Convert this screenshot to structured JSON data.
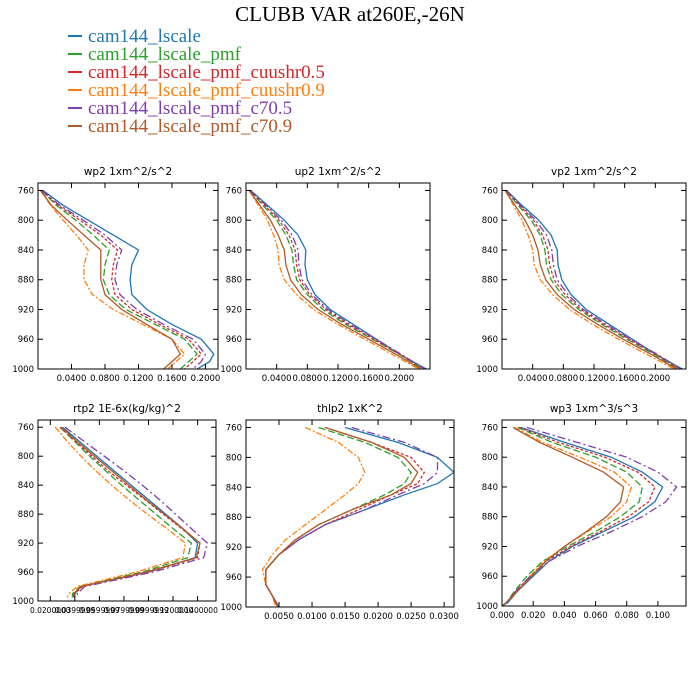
{
  "title": "CLUBB VAR at260E,-26N",
  "legend": [
    {
      "label": "cam144_lscale",
      "color": "#1f77b4"
    },
    {
      "label": "cam144_lscale_pmf",
      "color": "#2ca02c"
    },
    {
      "label": "cam144_lscale_pmf_cuushr0.5",
      "color": "#d62728"
    },
    {
      "label": "cam144_lscale_pmf_cuushr0.9",
      "color": "#ff7f0e"
    },
    {
      "label": "cam144_lscale_pmf_c70.5",
      "color": "#7e3fb0"
    },
    {
      "label": "cam144_lscale_pmf_c70.9",
      "color": "#b15928"
    }
  ],
  "chart_data": [
    {
      "type": "line",
      "title": "wp2   1xm^2/s^2",
      "ylim": [
        1000,
        750
      ],
      "yticks": [
        760,
        800,
        840,
        880,
        920,
        960,
        1000
      ],
      "xlim": [
        0.0,
        0.215
      ],
      "xticks": [
        0.04,
        0.08,
        0.12,
        0.16,
        0.2
      ],
      "xticklabels": [
        "0.0400",
        "0.0800",
        "0.1200",
        "0.1600",
        "0.2000"
      ],
      "y": [
        760,
        780,
        800,
        820,
        840,
        860,
        880,
        900,
        920,
        940,
        960,
        980,
        990,
        1000
      ],
      "series": [
        {
          "name": "cam144_lscale",
          "values": [
            0.006,
            0.03,
            0.06,
            0.09,
            0.12,
            0.112,
            0.11,
            0.112,
            0.13,
            0.16,
            0.195,
            0.21,
            0.205,
            0.19
          ]
        },
        {
          "name": "cam144_lscale_pmf",
          "values": [
            0.004,
            0.022,
            0.045,
            0.066,
            0.085,
            0.08,
            0.078,
            0.085,
            0.105,
            0.14,
            0.175,
            0.19,
            0.18,
            0.17
          ]
        },
        {
          "name": "cam144_lscale_pmf_cuushr0.5",
          "values": [
            0.004,
            0.024,
            0.05,
            0.075,
            0.095,
            0.09,
            0.088,
            0.092,
            0.112,
            0.145,
            0.18,
            0.195,
            0.185,
            0.175
          ]
        },
        {
          "name": "cam144_lscale_pmf_cuushr0.9",
          "values": [
            0.003,
            0.015,
            0.03,
            0.046,
            0.06,
            0.055,
            0.055,
            0.065,
            0.09,
            0.125,
            0.16,
            0.175,
            0.165,
            0.155
          ]
        },
        {
          "name": "cam144_lscale_pmf_c70.5",
          "values": [
            0.005,
            0.026,
            0.054,
            0.08,
            0.1,
            0.094,
            0.092,
            0.098,
            0.118,
            0.15,
            0.185,
            0.2,
            0.195,
            0.185
          ]
        },
        {
          "name": "cam144_lscale_pmf_c70.9",
          "values": [
            0.003,
            0.016,
            0.035,
            0.055,
            0.075,
            0.075,
            0.075,
            0.08,
            0.1,
            0.13,
            0.16,
            0.17,
            0.16,
            0.15
          ]
        }
      ]
    },
    {
      "type": "line",
      "title": "up2   1xm^2/s^2",
      "ylim": [
        1000,
        750
      ],
      "yticks": [
        760,
        800,
        840,
        880,
        920,
        960,
        1000
      ],
      "xlim": [
        0.0,
        0.24
      ],
      "xticks": [
        0.04,
        0.08,
        0.12,
        0.16,
        0.2
      ],
      "xticklabels": [
        "0.0400",
        "0.0800",
        "0.1200",
        "0.1600",
        "0.2000"
      ],
      "y": [
        760,
        780,
        800,
        820,
        840,
        860,
        880,
        900,
        920,
        940,
        960,
        980,
        1000
      ],
      "series": [
        {
          "name": "cam144_lscale",
          "values": [
            0.006,
            0.028,
            0.05,
            0.068,
            0.078,
            0.077,
            0.08,
            0.09,
            0.11,
            0.14,
            0.17,
            0.2,
            0.235
          ]
        },
        {
          "name": "cam144_lscale_pmf",
          "values": [
            0.005,
            0.022,
            0.04,
            0.052,
            0.06,
            0.062,
            0.066,
            0.08,
            0.1,
            0.13,
            0.165,
            0.2,
            0.23
          ]
        },
        {
          "name": "cam144_lscale_pmf_cuushr0.5",
          "values": [
            0.005,
            0.024,
            0.043,
            0.056,
            0.064,
            0.066,
            0.07,
            0.083,
            0.104,
            0.133,
            0.167,
            0.2,
            0.232
          ]
        },
        {
          "name": "cam144_lscale_pmf_cuushr0.9",
          "values": [
            0.004,
            0.016,
            0.028,
            0.036,
            0.042,
            0.043,
            0.05,
            0.066,
            0.088,
            0.12,
            0.155,
            0.19,
            0.225
          ]
        },
        {
          "name": "cam144_lscale_pmf_c70.5",
          "values": [
            0.006,
            0.026,
            0.046,
            0.06,
            0.068,
            0.069,
            0.073,
            0.086,
            0.107,
            0.136,
            0.17,
            0.202,
            0.233
          ]
        },
        {
          "name": "cam144_lscale_pmf_c70.9",
          "values": [
            0.004,
            0.018,
            0.032,
            0.042,
            0.05,
            0.052,
            0.058,
            0.072,
            0.094,
            0.125,
            0.16,
            0.195,
            0.228
          ]
        }
      ]
    },
    {
      "type": "line",
      "title": "vp2   1xm^2/s^2",
      "ylim": [
        1000,
        750
      ],
      "yticks": [
        760,
        800,
        840,
        880,
        920,
        960,
        1000
      ],
      "xlim": [
        0.0,
        0.24
      ],
      "xticks": [
        0.04,
        0.08,
        0.12,
        0.16,
        0.2
      ],
      "xticklabels": [
        "0.0400",
        "0.0800",
        "0.1200",
        "0.1600",
        "0.2000"
      ],
      "y": [
        760,
        780,
        800,
        820,
        840,
        860,
        880,
        900,
        920,
        940,
        960,
        980,
        1000
      ],
      "series": [
        {
          "name": "cam144_lscale",
          "values": [
            0.006,
            0.026,
            0.048,
            0.064,
            0.072,
            0.073,
            0.078,
            0.09,
            0.11,
            0.14,
            0.17,
            0.2,
            0.235
          ]
        },
        {
          "name": "cam144_lscale_pmf",
          "values": [
            0.005,
            0.021,
            0.038,
            0.05,
            0.056,
            0.058,
            0.064,
            0.078,
            0.1,
            0.13,
            0.163,
            0.198,
            0.23
          ]
        },
        {
          "name": "cam144_lscale_pmf_cuushr0.5",
          "values": [
            0.005,
            0.023,
            0.041,
            0.053,
            0.06,
            0.062,
            0.068,
            0.082,
            0.103,
            0.133,
            0.166,
            0.2,
            0.232
          ]
        },
        {
          "name": "cam144_lscale_pmf_cuushr0.9",
          "values": [
            0.004,
            0.015,
            0.026,
            0.034,
            0.04,
            0.042,
            0.05,
            0.066,
            0.088,
            0.118,
            0.152,
            0.188,
            0.225
          ]
        },
        {
          "name": "cam144_lscale_pmf_c70.5",
          "values": [
            0.006,
            0.024,
            0.044,
            0.058,
            0.065,
            0.067,
            0.072,
            0.086,
            0.106,
            0.136,
            0.168,
            0.202,
            0.233
          ]
        },
        {
          "name": "cam144_lscale_pmf_c70.9",
          "values": [
            0.004,
            0.017,
            0.03,
            0.04,
            0.047,
            0.05,
            0.057,
            0.072,
            0.094,
            0.125,
            0.158,
            0.194,
            0.228
          ]
        }
      ]
    },
    {
      "type": "line",
      "title": "rtp2   1E-6x(kg/kg)^2",
      "ylim": [
        1000,
        750
      ],
      "yticks": [
        760,
        800,
        840,
        880,
        920,
        960,
        1000
      ],
      "xlim": [
        0.01,
        0.155
      ],
      "xticks": [
        0.02,
        0.04,
        0.06,
        0.08,
        0.1,
        0.12,
        0.14
      ],
      "xticklabels": [
        "0.0200000",
        "0.0399999",
        "0.0599999",
        "0.0799999",
        "0.0999999",
        "0.1200000",
        "0.1400000"
      ],
      "y": [
        760,
        780,
        800,
        820,
        840,
        860,
        880,
        900,
        920,
        940,
        960,
        980,
        990,
        995
      ],
      "series": [
        {
          "name": "cam144_lscale",
          "values": [
            0.03,
            0.044,
            0.058,
            0.072,
            0.086,
            0.1,
            0.114,
            0.128,
            0.14,
            0.138,
            0.1,
            0.045,
            0.04,
            0.04
          ]
        },
        {
          "name": "cam144_lscale_pmf",
          "values": [
            0.028,
            0.04,
            0.052,
            0.065,
            0.078,
            0.092,
            0.106,
            0.12,
            0.135,
            0.132,
            0.095,
            0.044,
            0.038,
            0.038
          ]
        },
        {
          "name": "cam144_lscale_pmf_cuushr0.5",
          "values": [
            0.028,
            0.041,
            0.054,
            0.067,
            0.082,
            0.097,
            0.112,
            0.127,
            0.142,
            0.14,
            0.1,
            0.046,
            0.04,
            0.04
          ]
        },
        {
          "name": "cam144_lscale_pmf_cuushr0.9",
          "values": [
            0.024,
            0.034,
            0.045,
            0.057,
            0.07,
            0.084,
            0.099,
            0.115,
            0.13,
            0.128,
            0.09,
            0.042,
            0.035,
            0.034
          ]
        },
        {
          "name": "cam144_lscale_pmf_c70.5",
          "values": [
            0.032,
            0.048,
            0.064,
            0.08,
            0.095,
            0.109,
            0.122,
            0.135,
            0.148,
            0.145,
            0.104,
            0.048,
            0.042,
            0.042
          ]
        },
        {
          "name": "cam144_lscale_pmf_c70.9",
          "values": [
            0.029,
            0.042,
            0.056,
            0.07,
            0.084,
            0.098,
            0.113,
            0.128,
            0.142,
            0.139,
            0.098,
            0.045,
            0.039,
            0.039
          ]
        }
      ]
    },
    {
      "type": "line",
      "title": "thlp2   1xK^2",
      "ylim": [
        1000,
        750
      ],
      "yticks": [
        760,
        800,
        840,
        880,
        920,
        960,
        1000
      ],
      "xlim": [
        0.0,
        0.0315
      ],
      "xticks": [
        0.005,
        0.01,
        0.015,
        0.02,
        0.025,
        0.03
      ],
      "xticklabels": [
        "0.0050",
        "0.0100",
        "0.0150",
        "0.0200",
        "0.0250",
        "0.0300"
      ],
      "y": [
        760,
        780,
        800,
        820,
        835,
        850,
        870,
        890,
        910,
        930,
        950,
        970,
        985,
        1000
      ],
      "series": [
        {
          "name": "cam144_lscale",
          "values": [
            0.015,
            0.023,
            0.029,
            0.0315,
            0.029,
            0.024,
            0.018,
            0.012,
            0.008,
            0.005,
            0.003,
            0.003,
            0.004,
            0.005
          ]
        },
        {
          "name": "cam144_lscale_pmf",
          "values": [
            0.011,
            0.018,
            0.023,
            0.025,
            0.024,
            0.021,
            0.016,
            0.011,
            0.0075,
            0.005,
            0.003,
            0.003,
            0.004,
            0.0048
          ]
        },
        {
          "name": "cam144_lscale_pmf_cuushr0.5",
          "values": [
            0.012,
            0.019,
            0.025,
            0.027,
            0.026,
            0.022,
            0.017,
            0.012,
            0.008,
            0.005,
            0.003,
            0.003,
            0.004,
            0.0049
          ]
        },
        {
          "name": "cam144_lscale_pmf_cuushr0.9",
          "values": [
            0.009,
            0.014,
            0.017,
            0.018,
            0.017,
            0.015,
            0.012,
            0.009,
            0.006,
            0.004,
            0.0025,
            0.003,
            0.004,
            0.0045
          ]
        },
        {
          "name": "cam144_lscale_pmf_c70.5",
          "values": [
            0.016,
            0.024,
            0.029,
            0.029,
            0.027,
            0.023,
            0.018,
            0.012,
            0.008,
            0.005,
            0.003,
            0.003,
            0.004,
            0.005
          ]
        },
        {
          "name": "cam144_lscale_pmf_c70.9",
          "values": [
            0.012,
            0.019,
            0.024,
            0.026,
            0.025,
            0.022,
            0.016,
            0.011,
            0.0075,
            0.005,
            0.003,
            0.003,
            0.004,
            0.0048
          ]
        }
      ]
    },
    {
      "type": "line",
      "title": "wp3   1xm^3/s^3",
      "ylim": [
        1000,
        750
      ],
      "yticks": [
        760,
        800,
        840,
        880,
        920,
        960,
        1000
      ],
      "xlim": [
        0.0,
        0.118
      ],
      "xticks": [
        0.0,
        0.02,
        0.04,
        0.06,
        0.08,
        0.1
      ],
      "xticklabels": [
        "0.000",
        "0.020",
        "0.040",
        "0.060",
        "0.080",
        "0.100"
      ],
      "y": [
        760,
        780,
        800,
        820,
        840,
        860,
        880,
        900,
        920,
        940,
        960,
        980,
        995,
        1000
      ],
      "series": [
        {
          "name": "cam144_lscale",
          "values": [
            0.012,
            0.04,
            0.07,
            0.09,
            0.103,
            0.098,
            0.085,
            0.065,
            0.045,
            0.03,
            0.02,
            0.01,
            0.004,
            0.0
          ]
        },
        {
          "name": "cam144_lscale_pmf",
          "values": [
            0.01,
            0.032,
            0.06,
            0.08,
            0.09,
            0.088,
            0.076,
            0.06,
            0.042,
            0.026,
            0.016,
            0.008,
            0.003,
            0.0
          ]
        },
        {
          "name": "cam144_lscale_pmf_cuushr0.5",
          "values": [
            0.011,
            0.036,
            0.066,
            0.087,
            0.098,
            0.094,
            0.081,
            0.063,
            0.044,
            0.028,
            0.018,
            0.009,
            0.003,
            0.0
          ]
        },
        {
          "name": "cam144_lscale_pmf_cuushr0.9",
          "values": [
            0.008,
            0.026,
            0.05,
            0.072,
            0.083,
            0.08,
            0.07,
            0.055,
            0.04,
            0.027,
            0.018,
            0.01,
            0.003,
            0.0
          ]
        },
        {
          "name": "cam144_lscale_pmf_c70.5",
          "values": [
            0.016,
            0.048,
            0.08,
            0.1,
            0.112,
            0.105,
            0.09,
            0.07,
            0.048,
            0.03,
            0.018,
            0.009,
            0.003,
            0.0
          ]
        },
        {
          "name": "cam144_lscale_pmf_c70.9",
          "values": [
            0.007,
            0.024,
            0.045,
            0.065,
            0.078,
            0.076,
            0.067,
            0.054,
            0.04,
            0.028,
            0.019,
            0.01,
            0.003,
            0.0
          ]
        }
      ]
    }
  ]
}
